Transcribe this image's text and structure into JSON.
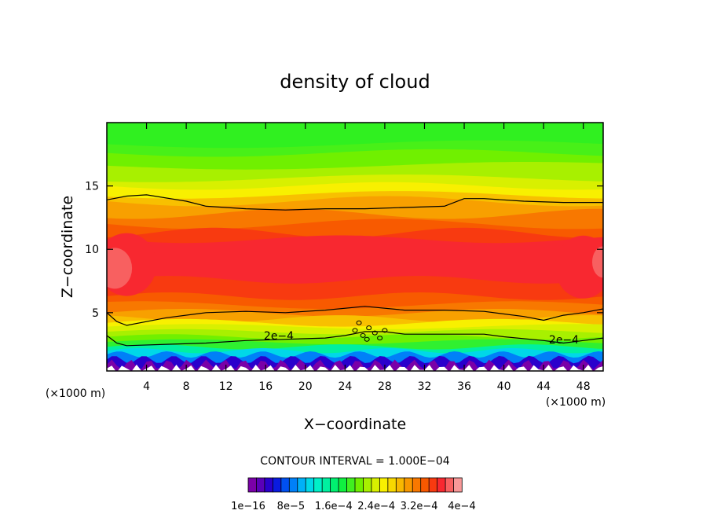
{
  "chart_data": {
    "type": "heatmap",
    "title": "density of cloud",
    "xlabel": "X−coordinate",
    "ylabel": "Z−coordinate",
    "x_unit_left": "(×1000 m)",
    "x_unit_right": "(×1000 m)",
    "xlim": [
      0,
      50
    ],
    "ylim": [
      0.4,
      20
    ],
    "x_ticks": [
      4,
      8,
      12,
      16,
      20,
      24,
      28,
      32,
      36,
      40,
      44,
      48
    ],
    "y_ticks": [
      5,
      10,
      15
    ],
    "contour_interval_text": "CONTOUR INTERVAL = 1.000E−04",
    "contour_labels": [
      {
        "text": "2e−4",
        "x": 16.5,
        "y": 2.85
      },
      {
        "text": "2e−4",
        "x": 46.2,
        "y": 2.65
      }
    ],
    "contour_lines": [
      {
        "level": 0.0002,
        "points": [
          [
            0,
            3.2
          ],
          [
            1,
            2.6
          ],
          [
            2,
            2.4
          ],
          [
            6,
            2.5
          ],
          [
            10,
            2.6
          ],
          [
            14,
            2.8
          ],
          [
            18,
            2.9
          ],
          [
            22,
            3.0
          ],
          [
            24,
            3.2
          ],
          [
            26,
            3.5
          ],
          [
            28,
            3.5
          ],
          [
            30,
            3.3
          ],
          [
            34,
            3.3
          ],
          [
            38,
            3.3
          ],
          [
            40,
            3.1
          ],
          [
            44,
            2.8
          ],
          [
            46,
            2.6
          ],
          [
            48,
            2.8
          ],
          [
            50,
            3.0
          ]
        ]
      },
      {
        "level": 0.0003,
        "points": [
          [
            0,
            5.0
          ],
          [
            1,
            4.3
          ],
          [
            2,
            4.0
          ],
          [
            6,
            4.6
          ],
          [
            10,
            5.0
          ],
          [
            14,
            5.1
          ],
          [
            18,
            5.0
          ],
          [
            22,
            5.2
          ],
          [
            26,
            5.5
          ],
          [
            30,
            5.2
          ],
          [
            34,
            5.2
          ],
          [
            38,
            5.1
          ],
          [
            42,
            4.7
          ],
          [
            44,
            4.4
          ],
          [
            46,
            4.8
          ],
          [
            48,
            5.0
          ],
          [
            50,
            5.3
          ]
        ]
      },
      {
        "level": 0.0003,
        "points": [
          [
            0,
            13.9
          ],
          [
            2,
            14.2
          ],
          [
            4,
            14.3
          ],
          [
            8,
            13.8
          ],
          [
            10,
            13.4
          ],
          [
            14,
            13.2
          ],
          [
            18,
            13.1
          ],
          [
            22,
            13.2
          ],
          [
            26,
            13.2
          ],
          [
            30,
            13.3
          ],
          [
            34,
            13.4
          ],
          [
            36,
            14.0
          ],
          [
            38,
            14.0
          ],
          [
            42,
            13.8
          ],
          [
            46,
            13.7
          ],
          [
            50,
            13.7
          ]
        ]
      }
    ],
    "colorbar": {
      "colors": [
        "#7a00a8",
        "#5a00b8",
        "#2a00cc",
        "#0a1be0",
        "#0050f0",
        "#0080f8",
        "#00b0f8",
        "#00d8e8",
        "#00f0c8",
        "#00f0a0",
        "#00f070",
        "#10f040",
        "#40f020",
        "#70f000",
        "#a8f000",
        "#d8f000",
        "#f8f000",
        "#f8d800",
        "#f8b800",
        "#f89800",
        "#f87800",
        "#f85800",
        "#f83a10",
        "#f82830",
        "#f86060",
        "#f89898"
      ],
      "tick_labels": [
        "1e−16",
        "8e−5",
        "1.6e−4",
        "2.4e−4",
        "3.2e−4",
        "4e−4"
      ]
    }
  }
}
